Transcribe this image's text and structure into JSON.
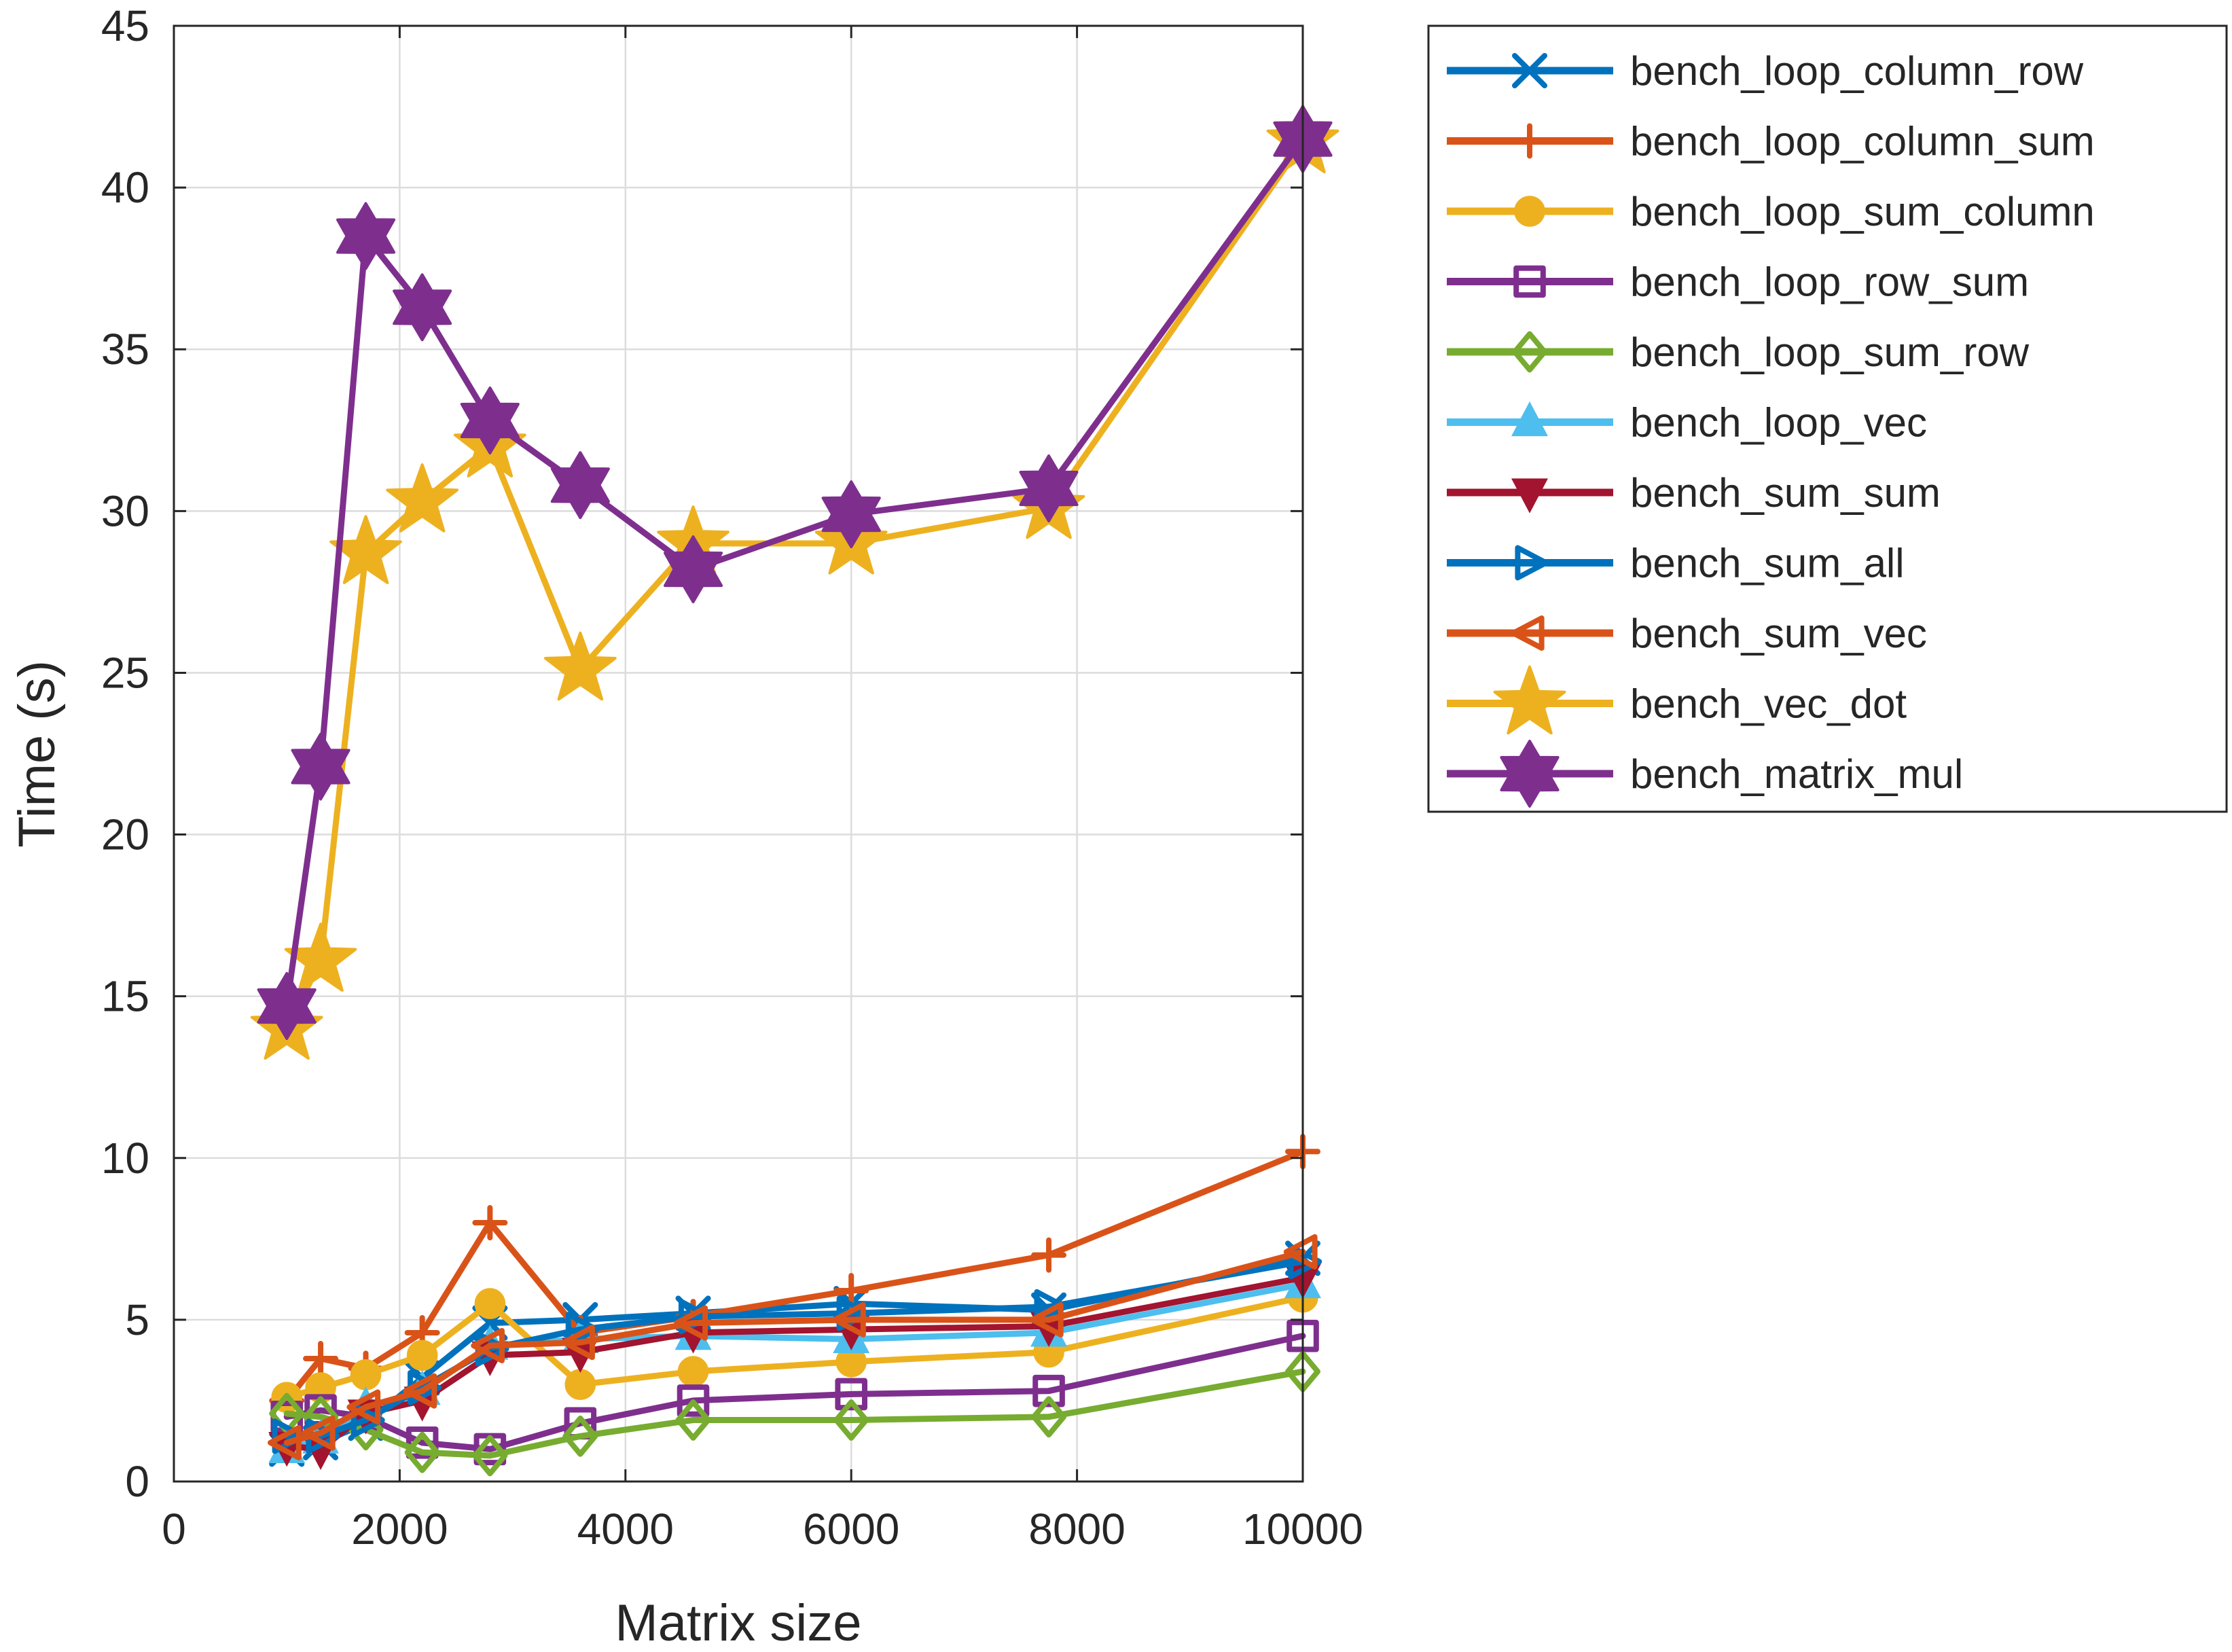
{
  "chart_data": {
    "type": "line",
    "title": "",
    "xlabel": "Matrix size",
    "ylabel": "Time (s)",
    "xlim": [
      0,
      10000
    ],
    "ylim": [
      0,
      45
    ],
    "xticks": [
      0,
      2000,
      4000,
      6000,
      8000,
      10000
    ],
    "yticks": [
      0,
      5,
      10,
      15,
      20,
      25,
      30,
      35,
      40,
      45
    ],
    "grid": true,
    "legend_position": "outside-top-right",
    "x": [
      1000,
      1300,
      1700,
      2200,
      2800,
      3600,
      4600,
      6000,
      7750,
      10000
    ],
    "series": [
      {
        "name": "bench_loop_column_row",
        "marker": "x",
        "color": "#0072BD",
        "values": [
          1.0,
          1.2,
          1.8,
          3.2,
          4.9,
          5.0,
          5.2,
          5.5,
          5.3,
          6.9
        ]
      },
      {
        "name": "bench_loop_column_sum",
        "marker": "+",
        "color": "#D95319",
        "values": [
          2.5,
          3.8,
          3.5,
          4.6,
          8.0,
          4.6,
          5.1,
          5.9,
          7.0,
          10.2
        ]
      },
      {
        "name": "bench_loop_sum_column",
        "marker": "o",
        "color": "#EDB120",
        "values": [
          2.6,
          2.9,
          3.3,
          3.9,
          5.5,
          3.0,
          3.4,
          3.7,
          4.0,
          5.7
        ]
      },
      {
        "name": "bench_loop_row_sum",
        "marker": "square",
        "color": "#7E2F8E",
        "values": [
          2.0,
          2.2,
          2.0,
          1.2,
          1.0,
          1.8,
          2.5,
          2.7,
          2.8,
          4.5
        ]
      },
      {
        "name": "bench_loop_sum_row",
        "marker": "diamond",
        "color": "#77AC30",
        "values": [
          2.1,
          2.0,
          1.6,
          0.9,
          0.8,
          1.4,
          1.9,
          1.9,
          2.0,
          3.4
        ]
      },
      {
        "name": "bench_loop_vec",
        "marker": "triangle-up",
        "color": "#4DBEEE",
        "values": [
          1.0,
          1.3,
          2.3,
          2.8,
          4.2,
          4.4,
          4.5,
          4.4,
          4.6,
          6.1
        ]
      },
      {
        "name": "bench_sum_sum",
        "marker": "triangle-down",
        "color": "#A2142F",
        "values": [
          1.1,
          1.0,
          2.1,
          2.5,
          3.9,
          4.0,
          4.6,
          4.7,
          4.8,
          6.3
        ]
      },
      {
        "name": "bench_sum_all",
        "marker": "triangle-right",
        "color": "#0072BD",
        "values": [
          1.4,
          1.4,
          1.9,
          2.9,
          4.1,
          4.7,
          5.1,
          5.2,
          5.4,
          6.8
        ]
      },
      {
        "name": "bench_sum_vec",
        "marker": "triangle-left",
        "color": "#D95319",
        "values": [
          1.2,
          1.5,
          2.3,
          2.8,
          4.2,
          4.3,
          4.9,
          5.0,
          5.0,
          7.1
        ]
      },
      {
        "name": "bench_vec_dot",
        "marker": "pentagram",
        "color": "#EDB120",
        "values": [
          14.0,
          16.1,
          28.7,
          30.3,
          32.0,
          25.1,
          29.0,
          29.0,
          30.1,
          41.4
        ]
      },
      {
        "name": "bench_matrix_mul",
        "marker": "hexagram",
        "color": "#7E2F8E",
        "values": [
          14.7,
          22.1,
          38.5,
          36.3,
          32.8,
          30.8,
          28.2,
          29.9,
          30.7,
          41.5
        ]
      }
    ]
  }
}
